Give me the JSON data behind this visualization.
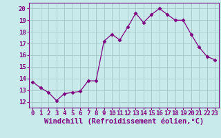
{
  "x": [
    0,
    1,
    2,
    3,
    4,
    5,
    6,
    7,
    8,
    9,
    10,
    11,
    12,
    13,
    14,
    15,
    16,
    17,
    18,
    19,
    20,
    21,
    22,
    23
  ],
  "y": [
    13.7,
    13.2,
    12.8,
    12.1,
    12.7,
    12.8,
    12.9,
    13.8,
    13.8,
    17.2,
    17.8,
    17.3,
    18.4,
    19.6,
    18.8,
    19.5,
    20.0,
    19.5,
    19.0,
    19.0,
    17.8,
    16.7,
    15.9,
    15.6
  ],
  "line_color": "#800080",
  "marker": "D",
  "marker_size": 2.5,
  "bg_color": "#c8eaea",
  "grid_color": "#aacccc",
  "xlabel": "Windchill (Refroidissement éolien,°C)",
  "ylim": [
    11.5,
    20.5
  ],
  "xlim": [
    -0.5,
    23.5
  ],
  "yticks": [
    12,
    13,
    14,
    15,
    16,
    17,
    18,
    19,
    20
  ],
  "xticks": [
    0,
    1,
    2,
    3,
    4,
    5,
    6,
    7,
    8,
    9,
    10,
    11,
    12,
    13,
    14,
    15,
    16,
    17,
    18,
    19,
    20,
    21,
    22,
    23
  ],
  "tick_label_fontsize": 6.5,
  "xlabel_fontsize": 7.5
}
